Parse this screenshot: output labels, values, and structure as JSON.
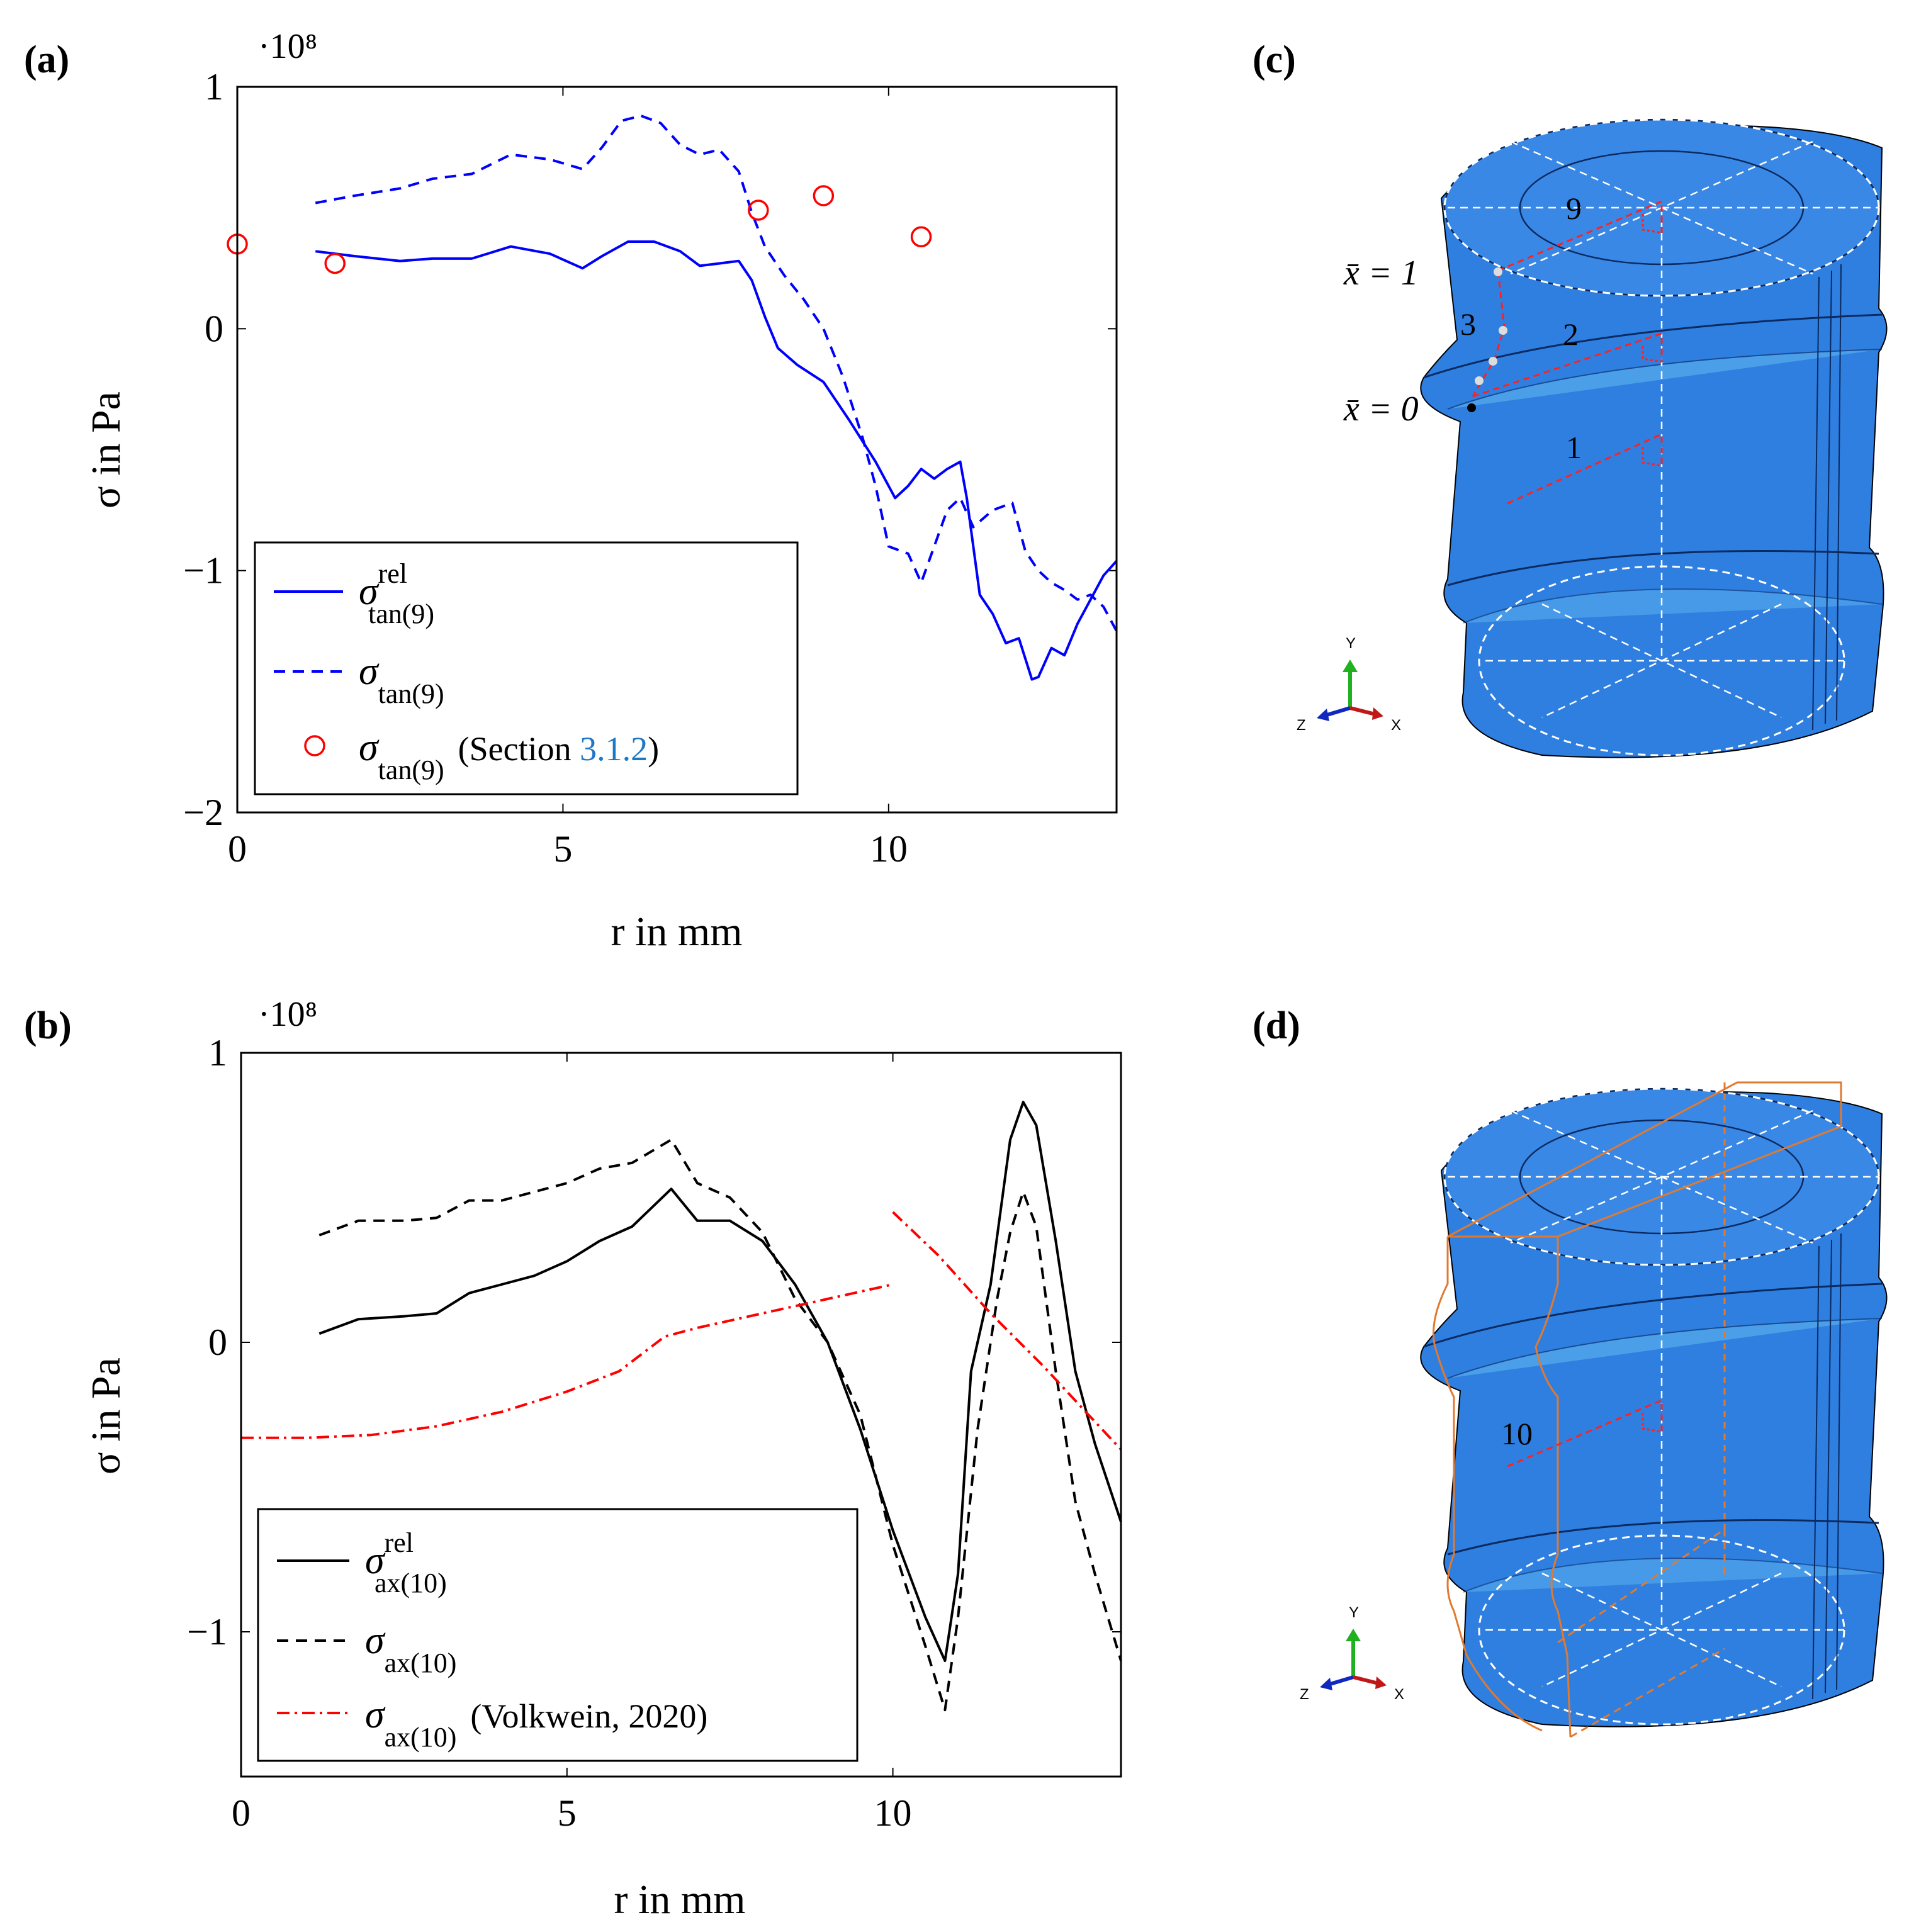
{
  "panels": {
    "a": {
      "label": "(a)"
    },
    "b": {
      "label": "(b)"
    },
    "c": {
      "label": "(c)"
    },
    "d": {
      "label": "(d)"
    }
  },
  "chart_data": [
    {
      "id": "a",
      "type": "line",
      "exponent_label": "·10⁸",
      "xlabel": "r in mm",
      "ylabel": "σ in Pa",
      "xlim": [
        0,
        13.5
      ],
      "ylim": [
        -2,
        1
      ],
      "xticks": [
        0,
        5,
        10
      ],
      "yticks": [
        1,
        0,
        -1,
        -2
      ],
      "xtick_labels": [
        "0",
        "5",
        "10"
      ],
      "ytick_labels": [
        "1",
        "0",
        "−1",
        "−2"
      ],
      "series": [
        {
          "name": "σ_tan(9)^rel",
          "legend_main": "σ",
          "legend_sub": "tan(9)",
          "legend_sup": "rel",
          "legend_note": "",
          "color": "#0000ff",
          "style": "solid",
          "marker": "none",
          "x": [
            1.2,
            1.8,
            2.5,
            3.0,
            3.6,
            4.2,
            4.8,
            5.3,
            5.6,
            6.0,
            6.4,
            6.8,
            7.1,
            7.4,
            7.7,
            7.9,
            8.1,
            8.3,
            8.6,
            9.0,
            9.4,
            9.8,
            10.1,
            10.3,
            10.5,
            10.7,
            10.9,
            11.1,
            11.2,
            11.4,
            11.6,
            11.8,
            12.0,
            12.2,
            12.3,
            12.5,
            12.7,
            12.9,
            13.1,
            13.3,
            13.5
          ],
          "y": [
            0.32,
            0.3,
            0.28,
            0.29,
            0.29,
            0.34,
            0.31,
            0.25,
            0.3,
            0.36,
            0.36,
            0.32,
            0.26,
            0.27,
            0.28,
            0.2,
            0.05,
            -0.08,
            -0.15,
            -0.22,
            -0.38,
            -0.55,
            -0.7,
            -0.65,
            -0.58,
            -0.62,
            -0.58,
            -0.55,
            -0.7,
            -1.1,
            -1.18,
            -1.3,
            -1.28,
            -1.45,
            -1.44,
            -1.32,
            -1.35,
            -1.22,
            -1.12,
            -1.02,
            -0.96
          ]
        },
        {
          "name": "σ_tan(9)",
          "legend_main": "σ",
          "legend_sub": "tan(9)",
          "legend_sup": "",
          "legend_note": "",
          "color": "#0000ff",
          "style": "dashed",
          "marker": "none",
          "x": [
            1.2,
            1.8,
            2.5,
            3.0,
            3.6,
            4.2,
            4.8,
            5.3,
            5.6,
            5.9,
            6.2,
            6.5,
            6.8,
            7.1,
            7.4,
            7.7,
            7.9,
            8.1,
            8.4,
            8.7,
            9.0,
            9.3,
            9.6,
            9.8,
            10.0,
            10.3,
            10.5,
            10.7,
            10.9,
            11.1,
            11.3,
            11.6,
            11.9,
            12.1,
            12.3,
            12.5,
            12.7,
            12.9,
            13.1,
            13.3,
            13.5
          ],
          "y": [
            0.52,
            0.55,
            0.58,
            0.62,
            0.64,
            0.72,
            0.7,
            0.66,
            0.75,
            0.86,
            0.88,
            0.85,
            0.76,
            0.72,
            0.74,
            0.65,
            0.48,
            0.34,
            0.22,
            0.12,
            0.0,
            -0.2,
            -0.45,
            -0.65,
            -0.9,
            -0.93,
            -1.05,
            -0.9,
            -0.75,
            -0.7,
            -0.82,
            -0.75,
            -0.72,
            -0.92,
            -1.0,
            -1.05,
            -1.08,
            -1.12,
            -1.1,
            -1.15,
            -1.25
          ]
        },
        {
          "name": "σ_tan(9) (Section 3.1.2)",
          "legend_main": "σ",
          "legend_sub": "tan(9)",
          "legend_sup": "",
          "legend_note": "(Section ",
          "legend_link": "3.1.2",
          "legend_close": ")",
          "color": "#ff0000",
          "style": "none",
          "marker": "circle",
          "x": [
            0,
            1.5,
            8.0,
            9.0,
            10.5
          ],
          "y": [
            0.35,
            0.27,
            0.49,
            0.55,
            0.38
          ]
        }
      ]
    },
    {
      "id": "b",
      "type": "line",
      "exponent_label": "·10⁸",
      "xlabel": "r in mm",
      "ylabel": "σ in Pa",
      "xlim": [
        0,
        13.5
      ],
      "ylim": [
        -1.5,
        1
      ],
      "xticks": [
        0,
        5,
        10
      ],
      "yticks": [
        1,
        0,
        -1
      ],
      "xtick_labels": [
        "0",
        "5",
        "10"
      ],
      "ytick_labels": [
        "1",
        "0",
        "−1"
      ],
      "series": [
        {
          "name": "σ_ax(10)^rel",
          "legend_main": "σ",
          "legend_sub": "ax(10)",
          "legend_sup": "rel",
          "legend_note": "",
          "color": "#000000",
          "style": "solid",
          "marker": "none",
          "x": [
            1.2,
            1.8,
            2.5,
            3.0,
            3.5,
            4.0,
            4.5,
            5.0,
            5.5,
            6.0,
            6.6,
            7.0,
            7.5,
            8.0,
            8.5,
            9.0,
            9.5,
            10.0,
            10.5,
            10.8,
            11.0,
            11.2,
            11.5,
            11.8,
            12.0,
            12.2,
            12.5,
            12.8,
            13.1,
            13.5
          ],
          "y": [
            0.03,
            0.08,
            0.09,
            0.1,
            0.17,
            0.2,
            0.23,
            0.28,
            0.35,
            0.4,
            0.53,
            0.42,
            0.42,
            0.35,
            0.2,
            0.0,
            -0.3,
            -0.65,
            -0.95,
            -1.1,
            -0.8,
            -0.1,
            0.2,
            0.7,
            0.83,
            0.75,
            0.35,
            -0.1,
            -0.35,
            -0.62
          ]
        },
        {
          "name": "σ_ax(10)",
          "legend_main": "σ",
          "legend_sub": "ax(10)",
          "legend_sup": "",
          "legend_note": "",
          "color": "#000000",
          "style": "dashed",
          "marker": "none",
          "x": [
            1.2,
            1.8,
            2.5,
            3.0,
            3.5,
            4.0,
            4.5,
            5.0,
            5.5,
            6.0,
            6.6,
            7.0,
            7.5,
            8.0,
            8.5,
            9.0,
            9.5,
            10.0,
            10.5,
            10.8,
            11.0,
            11.3,
            11.6,
            11.8,
            12.0,
            12.2,
            12.5,
            12.8,
            13.1,
            13.5
          ],
          "y": [
            0.37,
            0.42,
            0.42,
            0.43,
            0.49,
            0.49,
            0.52,
            0.55,
            0.6,
            0.62,
            0.7,
            0.55,
            0.5,
            0.38,
            0.15,
            0.0,
            -0.25,
            -0.7,
            -1.05,
            -1.27,
            -0.95,
            -0.3,
            0.15,
            0.38,
            0.52,
            0.4,
            -0.1,
            -0.55,
            -0.8,
            -1.1
          ]
        },
        {
          "name": "σ_ax(10) (Volkwein, 2020)",
          "legend_main": "σ",
          "legend_sub": "ax(10)",
          "legend_sup": "",
          "legend_note": "(Volkwein, 2020)",
          "color": "#ff0000",
          "style": "dashdot",
          "marker": "none",
          "x": [
            0,
            1,
            2,
            3,
            4,
            5,
            5.8,
            6.5,
            7,
            8,
            9,
            10,
            null,
            10,
            10.7,
            11.5,
            12.3,
            13,
            13.5
          ],
          "y": [
            -0.33,
            -0.33,
            -0.32,
            -0.29,
            -0.24,
            -0.17,
            -0.1,
            0.02,
            0.05,
            0.1,
            0.15,
            0.2,
            null,
            0.45,
            0.3,
            0.1,
            -0.08,
            -0.25,
            -0.37
          ]
        }
      ]
    }
  ],
  "model_c": {
    "labels": {
      "n9": "9",
      "n3": "3",
      "n2": "2",
      "n1": "1",
      "xbar1": "x̄ = 1",
      "xbar0": "x̄ = 0"
    },
    "triad": {
      "y": "Y",
      "z": "Z",
      "x": "X"
    },
    "colors": {
      "body": "#2f7fe0",
      "body_dark": "#1f63c0",
      "highlight": "#5fb5ee",
      "red_dash": "#ff2020"
    }
  },
  "model_d": {
    "labels": {
      "n10": "10"
    },
    "triad": {
      "y": "Y",
      "z": "Z",
      "x": "X"
    },
    "colors": {
      "body": "#2f7fe0",
      "body_dark": "#1f63c0",
      "orange": "#e07a30"
    }
  }
}
